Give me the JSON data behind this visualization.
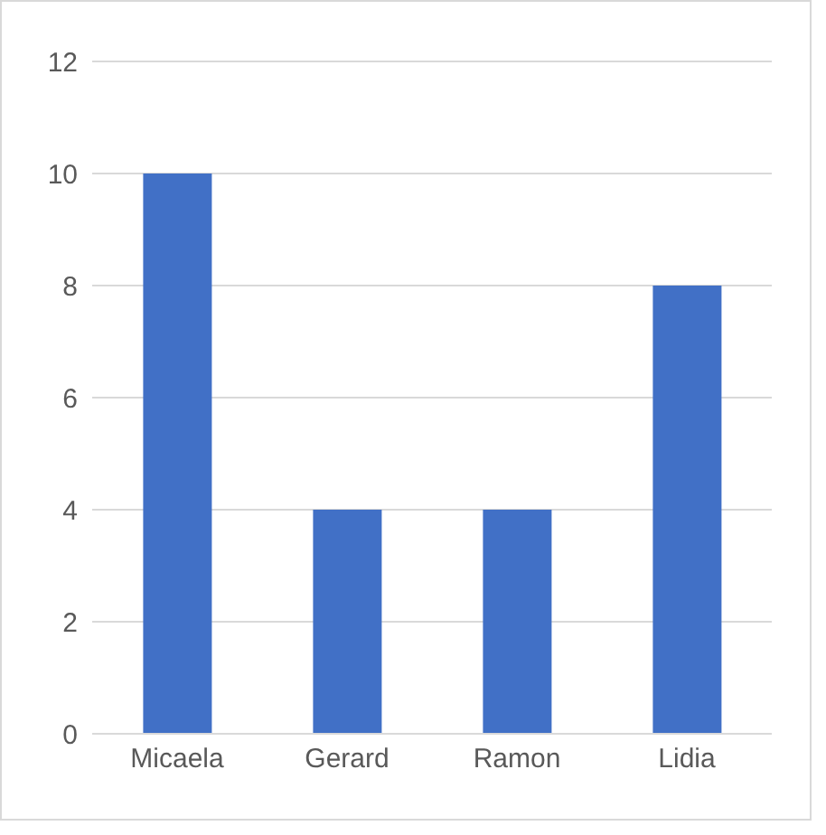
{
  "chart_data": {
    "type": "bar",
    "categories": [
      "Micaela",
      "Gerard",
      "Ramon",
      "Lidia"
    ],
    "values": [
      10,
      4,
      4,
      8
    ],
    "color": "#4170c6",
    "ylim": [
      0,
      12
    ],
    "yticks": [
      0,
      2,
      4,
      6,
      8,
      10,
      12
    ],
    "grid": "y",
    "legend": false
  }
}
